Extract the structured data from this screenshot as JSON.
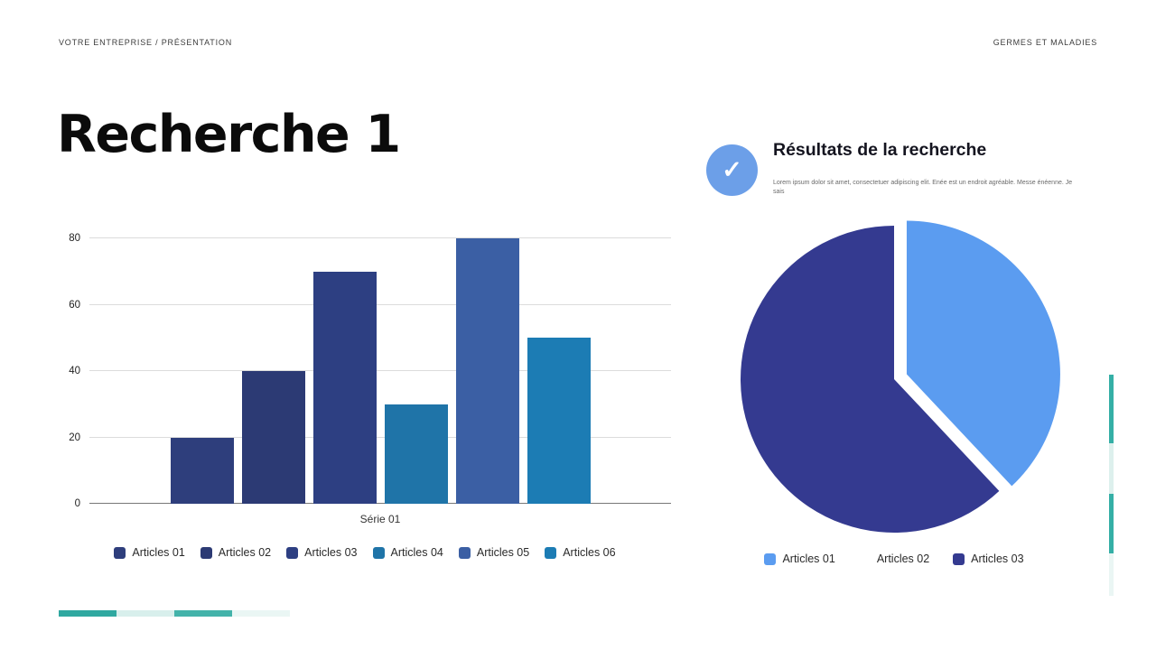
{
  "header": {
    "breadcrumb": "VOTRE ENTREPRISE / PRÉSENTATION",
    "right_label": "GERMES ET MALADIES"
  },
  "title": "Recherche 1",
  "results": {
    "heading": "Résultats de la recherche",
    "body": "Lorem ipsum dolor sit amet, consectetuer adipiscing elit. Enée est un endroit agréable. Messe énéenne. Je sais",
    "check_icon": "check-icon",
    "check_icon_color": "#6c9fe8",
    "check_glyph": "✓"
  },
  "chart_data": [
    {
      "type": "bar",
      "categories": [
        "Articles 01",
        "Articles 02",
        "Articles 03",
        "Articles 04",
        "Articles 05",
        "Articles 06"
      ],
      "values": [
        20,
        40,
        70,
        30,
        80,
        50
      ],
      "colors": [
        "#2e3e7c",
        "#2c3a74",
        "#2d3f82",
        "#1f74a8",
        "#3b5fa4",
        "#1c7cb4"
      ],
      "title": "",
      "xlabel": "Série 01",
      "ylabel": "",
      "ylim": [
        0,
        80
      ],
      "yticks": [
        0,
        20,
        40,
        60,
        80
      ],
      "grid": true,
      "legend_position": "bottom"
    },
    {
      "type": "pie",
      "categories": [
        "Articles 01",
        "Articles 02",
        "Articles 03"
      ],
      "values": [
        38,
        0,
        62
      ],
      "colors": [
        "#5b9cf0",
        "#ffffff",
        "#343a90"
      ],
      "exploded_slice": "Articles 01",
      "legend_position": "bottom"
    }
  ],
  "decor": {
    "bottom_segments": [
      "#2fa8a0",
      "#d8efec",
      "#43b3aa",
      "#eaf6f4"
    ],
    "side_segments": [
      {
        "color": "#35afa6",
        "height": 76
      },
      {
        "color": "#ddf0ed",
        "height": 56
      },
      {
        "color": "#35afa6",
        "height": 66
      },
      {
        "color": "#eaf6f4",
        "height": 47
      }
    ]
  }
}
